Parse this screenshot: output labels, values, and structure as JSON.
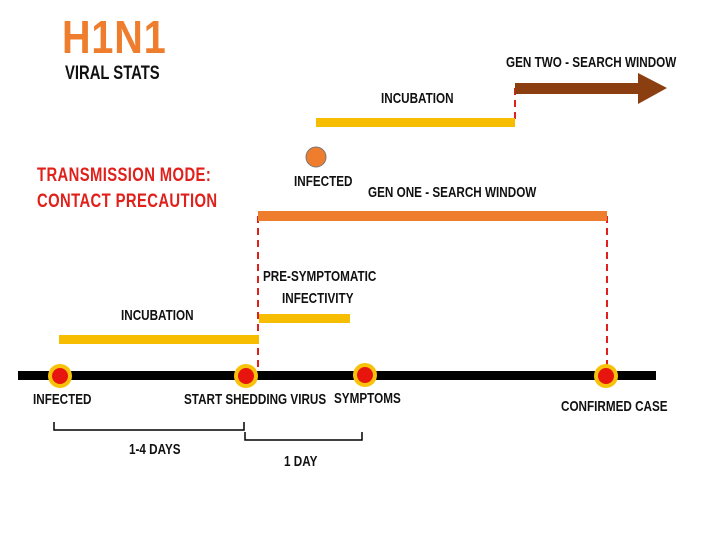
{
  "header": {
    "title": "H1N1",
    "subtitle": "VIRAL STATS"
  },
  "transmission": {
    "line1": "TRANSMISSION  MODE:",
    "line2": "CONTACT PRECAUTION"
  },
  "timeline": {
    "points": {
      "infected": "INFECTED",
      "shedding": "START SHEDDING VIRUS",
      "symptoms": "SYMPTOMS",
      "confirmed": "CONFIRMED CASE"
    },
    "intervals": {
      "days_1_4": "1-4 DAYS",
      "day_1": "1 DAY"
    }
  },
  "phases": {
    "incubation_gen1": "INCUBATION",
    "presymptomatic_line1": "PRE-SYMPTOMATIC",
    "presymptomatic_line2": "INFECTIVITY",
    "gen_one_window": "GEN ONE - SEARCH WINDOW",
    "infected_gen2": "INFECTED",
    "incubation_gen2": "INCUBATION",
    "gen_two_window": "GEN TWO - SEARCH WINDOW"
  },
  "colors": {
    "title_orange": "#ee7d2e",
    "red_text": "#e0201b",
    "incubation_yellow": "#f7bd00",
    "window_orange": "#ee7d2e",
    "gen_two_brown": "#8b3e0f",
    "dot_red": "#e8150f",
    "dot_ring": "#f8c20a",
    "dashed_red": "#e0201b",
    "timeline_black": "#000000"
  }
}
